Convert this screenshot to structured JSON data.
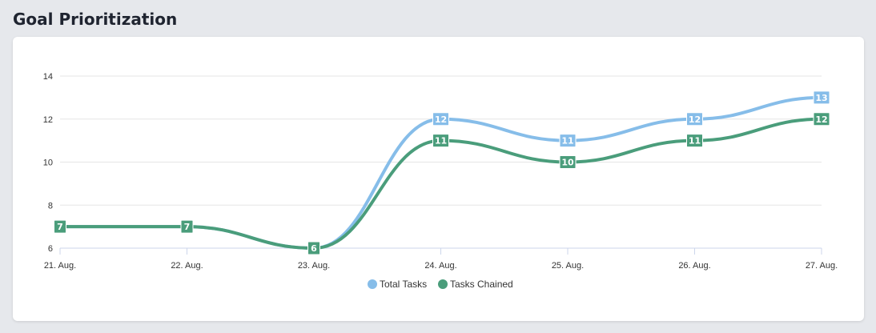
{
  "header": {
    "title": "Goal Prioritization"
  },
  "chart_data": {
    "type": "line",
    "title": "",
    "xlabel": "",
    "ylabel": "",
    "categories": [
      "21. Aug.",
      "22. Aug.",
      "23. Aug.",
      "24. Aug.",
      "25. Aug.",
      "26. Aug.",
      "27. Aug."
    ],
    "series": [
      {
        "name": "Total Tasks",
        "color": "#86bde9",
        "values": [
          7,
          7,
          6,
          12,
          11,
          12,
          13
        ],
        "labels": [
          null,
          null,
          null,
          "12",
          "11",
          "12",
          "13"
        ]
      },
      {
        "name": "Tasks Chained",
        "color": "#4a9d7b",
        "values": [
          7,
          7,
          6,
          11,
          10,
          11,
          12
        ],
        "labels": [
          "7",
          "7",
          "6",
          "11",
          "10",
          "11",
          "12"
        ]
      }
    ],
    "yticks": [
      "6",
      "8",
      "10",
      "12",
      "14"
    ],
    "ylim": [
      6,
      14
    ],
    "grid": true,
    "curve": "smooth",
    "legend_position": "bottom-center"
  }
}
